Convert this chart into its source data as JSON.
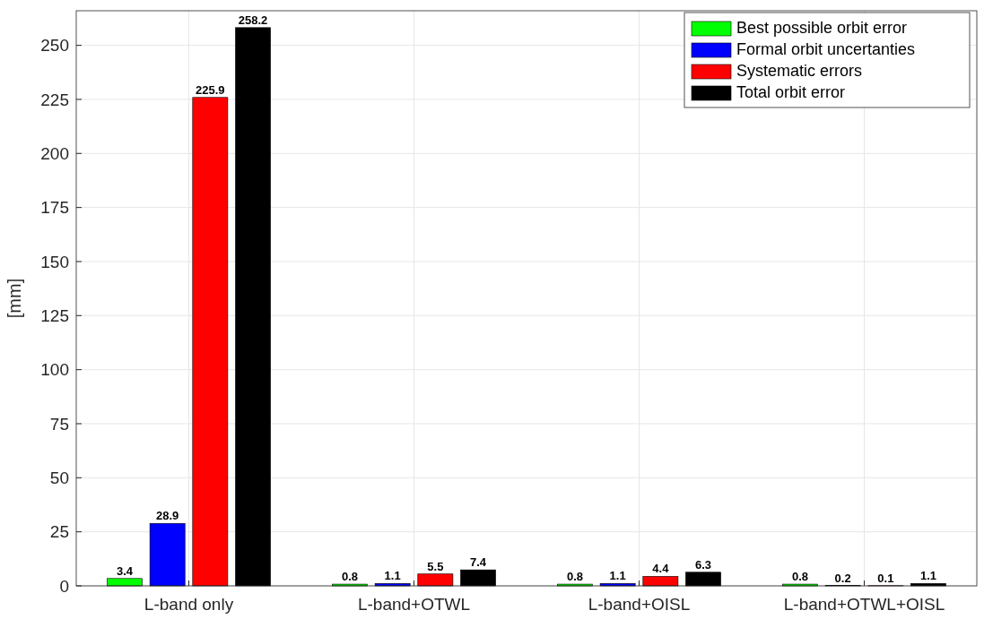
{
  "chart_data": {
    "type": "bar",
    "ylabel": "[mm]",
    "categories": [
      "L-band only",
      "L-band+OTWL",
      "L-band+OISL",
      "L-band+OTWL+OISL"
    ],
    "series": [
      {
        "name": "Best possible orbit error",
        "color": "#00ff00",
        "values": [
          3.4,
          0.8,
          0.8,
          0.8
        ]
      },
      {
        "name": "Formal orbit uncertanties",
        "color": "#0000ff",
        "values": [
          28.9,
          1.1,
          1.1,
          0.2
        ]
      },
      {
        "name": "Systematic errors",
        "color": "#ff0000",
        "values": [
          225.9,
          5.5,
          4.4,
          0.1
        ]
      },
      {
        "name": "Total orbit error",
        "color": "#000000",
        "values": [
          258.2,
          7.4,
          6.3,
          1.1
        ]
      }
    ],
    "ylim": [
      0,
      266
    ],
    "yticks": [
      0,
      25,
      50,
      75,
      100,
      125,
      150,
      175,
      200,
      225,
      250
    ],
    "grid": true,
    "legend": "top right",
    "data_labels": true
  }
}
